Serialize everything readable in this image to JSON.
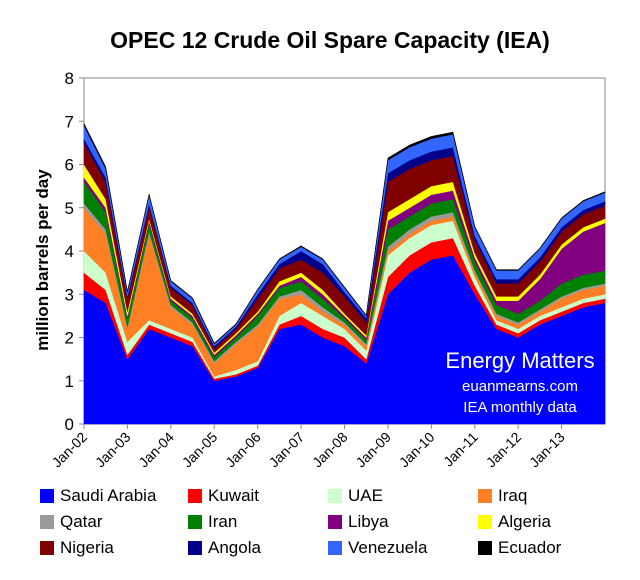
{
  "chart_data": {
    "type": "area",
    "title": "OPEC 12 Crude Oil Spare Capacity (IEA)",
    "ylabel": "million barrels per day",
    "xlabel": "",
    "stacked": true,
    "ylim": [
      0,
      8
    ],
    "yticks": [
      "0",
      "1",
      "2",
      "3",
      "4",
      "5",
      "6",
      "7",
      "8"
    ],
    "x": [
      "Jan-02",
      "Jul-02",
      "Jan-03",
      "Jul-03",
      "Jan-04",
      "Jul-04",
      "Jan-05",
      "Jul-05",
      "Jan-06",
      "Jul-06",
      "Jan-07",
      "Jul-07",
      "Jan-08",
      "Jul-08",
      "Jan-09",
      "Jul-09",
      "Jan-10",
      "Jul-10",
      "Jan-11",
      "Jul-11",
      "Jan-12",
      "Jul-12",
      "Jan-13",
      "Jul-13",
      "Dec-13"
    ],
    "xticks": [
      "Jan-02",
      "Jan-03",
      "Jan-04",
      "Jan-05",
      "Jan-06",
      "Jan-07",
      "Jan-08",
      "Jan-09",
      "Jan-10",
      "Jan-11",
      "Jan-12",
      "Jan-13"
    ],
    "series": [
      {
        "name": "Saudi Arabia",
        "color": "#0000ff",
        "values": [
          3.1,
          2.8,
          1.5,
          2.2,
          2.0,
          1.8,
          1.0,
          1.1,
          1.3,
          2.2,
          2.3,
          2.0,
          1.8,
          1.4,
          3.0,
          3.5,
          3.8,
          3.9,
          3.0,
          2.2,
          2.0,
          2.3,
          2.5,
          2.7,
          2.8
        ]
      },
      {
        "name": "Kuwait",
        "color": "#ff0000",
        "values": [
          0.4,
          0.3,
          0.1,
          0.1,
          0.1,
          0.1,
          0.05,
          0.05,
          0.05,
          0.1,
          0.2,
          0.2,
          0.2,
          0.1,
          0.4,
          0.4,
          0.4,
          0.4,
          0.2,
          0.1,
          0.1,
          0.1,
          0.1,
          0.1,
          0.1
        ]
      },
      {
        "name": "UAE",
        "color": "#ccffcc",
        "values": [
          0.5,
          0.4,
          0.3,
          0.1,
          0.1,
          0.1,
          0.05,
          0.1,
          0.1,
          0.2,
          0.3,
          0.3,
          0.2,
          0.2,
          0.5,
          0.4,
          0.4,
          0.4,
          0.2,
          0.1,
          0.1,
          0.1,
          0.1,
          0.1,
          0.1
        ]
      },
      {
        "name": "Iraq",
        "color": "#ff7f24",
        "values": [
          1.0,
          0.9,
          0.3,
          2.0,
          0.5,
          0.3,
          0.3,
          0.6,
          0.8,
          0.4,
          0.2,
          0.1,
          0.1,
          0.1,
          0.1,
          0.1,
          0.1,
          0.1,
          0.1,
          0.1,
          0.1,
          0.1,
          0.2,
          0.2,
          0.2
        ]
      },
      {
        "name": "Qatar",
        "color": "#999999",
        "values": [
          0.1,
          0.1,
          0.05,
          0.05,
          0.05,
          0.05,
          0.05,
          0.05,
          0.05,
          0.05,
          0.1,
          0.1,
          0.05,
          0.05,
          0.1,
          0.1,
          0.1,
          0.1,
          0.05,
          0.05,
          0.05,
          0.05,
          0.05,
          0.05,
          0.05
        ]
      },
      {
        "name": "Iran",
        "color": "#008000",
        "values": [
          0.5,
          0.4,
          0.2,
          0.2,
          0.1,
          0.1,
          0.1,
          0.1,
          0.2,
          0.2,
          0.2,
          0.2,
          0.1,
          0.1,
          0.4,
          0.3,
          0.3,
          0.3,
          0.2,
          0.2,
          0.2,
          0.2,
          0.3,
          0.3,
          0.3
        ]
      },
      {
        "name": "Libya",
        "color": "#800080",
        "values": [
          0.1,
          0.1,
          0.05,
          0.05,
          0.05,
          0.05,
          0.05,
          0.05,
          0.05,
          0.05,
          0.1,
          0.1,
          0.05,
          0.05,
          0.2,
          0.2,
          0.2,
          0.2,
          0.1,
          0.1,
          0.3,
          0.5,
          0.8,
          1.0,
          1.1
        ]
      },
      {
        "name": "Algeria",
        "color": "#ffff00",
        "values": [
          0.3,
          0.2,
          0.1,
          0.05,
          0.05,
          0.05,
          0.05,
          0.05,
          0.05,
          0.1,
          0.1,
          0.1,
          0.05,
          0.05,
          0.2,
          0.2,
          0.2,
          0.2,
          0.1,
          0.1,
          0.1,
          0.1,
          0.1,
          0.1,
          0.1
        ]
      },
      {
        "name": "Nigeria",
        "color": "#800000",
        "values": [
          0.5,
          0.4,
          0.3,
          0.3,
          0.2,
          0.2,
          0.1,
          0.1,
          0.3,
          0.3,
          0.3,
          0.4,
          0.4,
          0.3,
          0.7,
          0.7,
          0.6,
          0.6,
          0.3,
          0.3,
          0.3,
          0.3,
          0.3,
          0.3,
          0.3
        ]
      },
      {
        "name": "Angola",
        "color": "#00008b",
        "values": [
          0.1,
          0.1,
          0.05,
          0.05,
          0.05,
          0.05,
          0.05,
          0.05,
          0.1,
          0.1,
          0.2,
          0.2,
          0.1,
          0.1,
          0.2,
          0.2,
          0.2,
          0.2,
          0.1,
          0.1,
          0.1,
          0.1,
          0.1,
          0.1,
          0.1
        ]
      },
      {
        "name": "Venezuela",
        "color": "#3366ff",
        "values": [
          0.3,
          0.2,
          0.1,
          0.2,
          0.1,
          0.1,
          0.05,
          0.05,
          0.1,
          0.1,
          0.1,
          0.1,
          0.1,
          0.05,
          0.3,
          0.3,
          0.3,
          0.3,
          0.2,
          0.2,
          0.2,
          0.2,
          0.2,
          0.2,
          0.2
        ]
      },
      {
        "name": "Ecuador",
        "color": "#000000",
        "values": [
          0.05,
          0.05,
          0.02,
          0.02,
          0.02,
          0.02,
          0.02,
          0.02,
          0.02,
          0.02,
          0.02,
          0.02,
          0.02,
          0.02,
          0.05,
          0.05,
          0.05,
          0.05,
          0.02,
          0.02,
          0.02,
          0.02,
          0.02,
          0.02,
          0.02
        ]
      }
    ],
    "annotations": [
      "Energy Matters",
      "euanmearns.com",
      "IEA monthly data"
    ],
    "legend_placement": "bottom",
    "grid": false
  }
}
